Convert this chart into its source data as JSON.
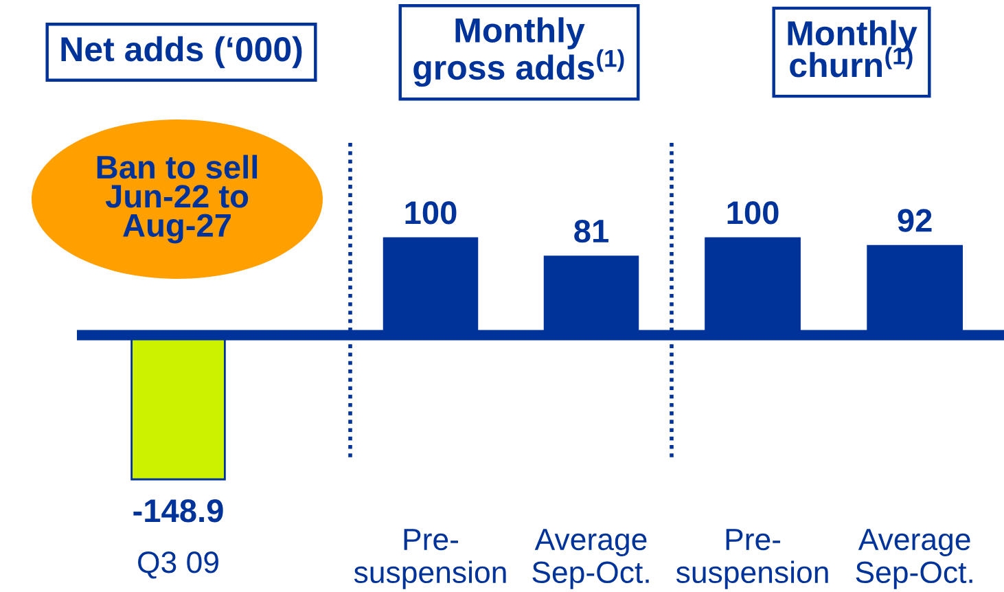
{
  "chart_data": [
    {
      "type": "bar",
      "title": "Net adds (‘000)",
      "categories": [
        "Q3 09"
      ],
      "values": [
        -148.9
      ],
      "color": "#ccf200",
      "data_labels": true,
      "annotations": [
        "Ban to sell\nJun-22 to\nAug-27"
      ]
    },
    {
      "type": "bar",
      "title": "Monthly\ngross adds$^{(1)}$",
      "categories": [
        "Pre-\nsuspension",
        "Average\nSep-Oct."
      ],
      "values": [
        100,
        81
      ],
      "color": "#003399",
      "data_labels": true
    },
    {
      "type": "bar",
      "title": "Monthly\nchurn$^{(1)}$",
      "categories": [
        "Pre-\nsuspension",
        "Average\nSep-Oct."
      ],
      "values": [
        100,
        92
      ],
      "color": "#003399",
      "data_labels": true
    }
  ]
}
